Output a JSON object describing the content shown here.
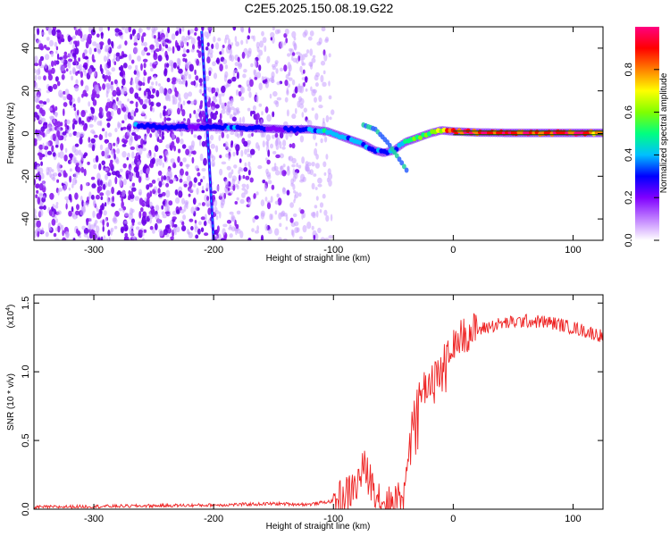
{
  "figure_title": "C2E5.2025.150.08.19.G22",
  "chart_data": [
    {
      "type": "heatmap",
      "title": "C2E5.2025.150.08.19.G22",
      "xlabel": "Height of straight line (km)",
      "ylabel": "Frequency (Hz)",
      "xlim": [
        -350,
        125
      ],
      "ylim": [
        -50,
        50
      ],
      "xticks": [
        -300,
        -200,
        -100,
        0,
        100
      ],
      "yticks": [
        -40,
        -20,
        0,
        20,
        40
      ],
      "colorbar": {
        "label": "Normalized spectral amplitude",
        "range": [
          0,
          1
        ],
        "ticks": [
          0.0,
          0.2,
          0.4,
          0.6,
          0.8
        ],
        "colors": [
          "#ffffff",
          "#c080ff",
          "#8000ff",
          "#0000ff",
          "#00c0ff",
          "#00ff80",
          "#80ff00",
          "#ffff00",
          "#ff8000",
          "#ff0000",
          "#ff0080"
        ]
      },
      "noise_region_x": [
        -350,
        -120
      ],
      "main_trace": {
        "x": [
          -265,
          -240,
          -215,
          -190,
          -165,
          -140,
          -120,
          -105,
          -95,
          -85,
          -75,
          -65,
          -58,
          -50,
          -45,
          -40,
          -30,
          -20,
          -10,
          0,
          20,
          50,
          80,
          125
        ],
        "y": [
          4,
          3,
          3,
          3,
          2.5,
          2,
          2,
          1,
          -1,
          -3,
          -5,
          -8,
          -9,
          -8,
          -6,
          -4,
          -2,
          0,
          1.5,
          1,
          0.5,
          0.3,
          0.3,
          0.3
        ],
        "amplitude": [
          0.35,
          0.3,
          0.25,
          0.35,
          0.3,
          0.25,
          0.4,
          0.45,
          0.45,
          0.4,
          0.35,
          0.35,
          0.3,
          0.35,
          0.4,
          0.45,
          0.55,
          0.65,
          0.75,
          0.85,
          0.95,
          0.95,
          0.95,
          0.9
        ]
      },
      "secondary_trace": {
        "x": [
          -75,
          -65,
          -55,
          -45,
          -38
        ],
        "y": [
          4,
          2,
          -4,
          -12,
          -18
        ]
      },
      "slanted_streak": {
        "x1": -210,
        "y1": 48,
        "x2": -200,
        "y2": -50
      }
    },
    {
      "type": "line",
      "title": "",
      "xlabel": "Height of straight line (km)",
      "ylabel": "SNR (10 * v/v)",
      "scale_note": "(x10",
      "scale_exp": "4",
      "xlim": [
        -350,
        125
      ],
      "ylim": [
        0,
        15600
      ],
      "xticks": [
        -300,
        -200,
        -100,
        0,
        100
      ],
      "yticks": [
        0,
        5000,
        10000,
        15000
      ],
      "ytick_labels": [
        "0.0",
        "0.5",
        "1.0",
        "1.5"
      ],
      "color": "#ee2222",
      "series": [
        {
          "x": [
            -350,
            -300,
            -250,
            -200,
            -150,
            -120,
            -100,
            -90,
            -80,
            -75,
            -70,
            -65,
            -60,
            -55,
            -50,
            -45,
            -40,
            -35,
            -30,
            -25,
            -20,
            -15,
            -10,
            -5,
            0,
            10,
            20,
            30,
            40,
            60,
            80,
            100,
            125
          ],
          "y": [
            150,
            200,
            250,
            300,
            400,
            350,
            600,
            1000,
            1800,
            3100,
            2200,
            1500,
            700,
            300,
            500,
            1200,
            3000,
            5500,
            8000,
            8800,
            9300,
            10000,
            10200,
            11500,
            12000,
            12800,
            13000,
            13300,
            13500,
            13700,
            13600,
            13200,
            12600
          ]
        }
      ]
    }
  ]
}
